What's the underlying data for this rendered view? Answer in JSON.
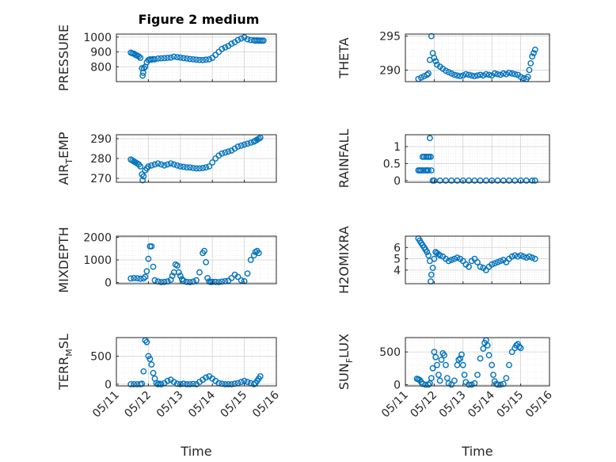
{
  "figure_title": "Figure 2 medium",
  "x_axis_label": "Time",
  "x_ticks": [
    "05/11",
    "05/12",
    "05/13",
    "05/14",
    "05/15",
    "05/16"
  ],
  "marker_color": "#0072BD",
  "chart_data": [
    {
      "type": "scatter",
      "title": "Figure 2 medium",
      "ylabel": "PRESSURE",
      "xlabel": "",
      "xlim": [
        0,
        5
      ],
      "ylim": [
        700,
        1020
      ],
      "yticks": [
        800,
        900,
        1000
      ],
      "grid": true,
      "x": [
        0.45,
        0.5,
        0.55,
        0.6,
        0.65,
        0.7,
        0.75,
        0.8,
        0.82,
        0.84,
        0.86,
        0.9,
        0.95,
        1.0,
        1.05,
        1.1,
        1.15,
        1.2,
        1.3,
        1.4,
        1.5,
        1.6,
        1.7,
        1.8,
        1.9,
        2.0,
        2.1,
        2.2,
        2.3,
        2.4,
        2.5,
        2.6,
        2.7,
        2.8,
        2.9,
        3.0,
        3.1,
        3.2,
        3.3,
        3.4,
        3.5,
        3.6,
        3.7,
        3.8,
        3.9,
        4.0,
        4.1,
        4.2,
        4.3,
        4.35,
        4.4,
        4.45,
        4.5,
        4.55,
        4.6
      ],
      "y": [
        895,
        890,
        888,
        880,
        875,
        870,
        860,
        790,
        740,
        760,
        790,
        800,
        830,
        845,
        850,
        848,
        852,
        850,
        855,
        857,
        858,
        860,
        862,
        868,
        865,
        862,
        858,
        855,
        852,
        850,
        848,
        846,
        845,
        848,
        850,
        860,
        880,
        900,
        920,
        930,
        940,
        955,
        965,
        980,
        990,
        998,
        985,
        980,
        978,
        976,
        978,
        975,
        977,
        975,
        976
      ]
    },
    {
      "type": "scatter",
      "ylabel": "THETA",
      "xlabel": "",
      "xlim": [
        0,
        5
      ],
      "ylim": [
        288.3,
        295.3
      ],
      "yticks": [
        290,
        295
      ],
      "grid": true,
      "x": [
        0.45,
        0.55,
        0.65,
        0.75,
        0.8,
        0.85,
        0.9,
        0.95,
        1.0,
        1.05,
        1.1,
        1.2,
        1.3,
        1.4,
        1.5,
        1.6,
        1.7,
        1.8,
        1.9,
        2.0,
        2.1,
        2.2,
        2.3,
        2.4,
        2.5,
        2.6,
        2.7,
        2.8,
        2.9,
        3.0,
        3.1,
        3.2,
        3.3,
        3.4,
        3.5,
        3.6,
        3.7,
        3.8,
        3.9,
        4.0,
        4.1,
        4.2,
        4.25,
        4.3,
        4.35,
        4.4,
        4.45,
        4.5
      ],
      "y": [
        288.7,
        288.9,
        289.1,
        289.3,
        289.5,
        291.5,
        295.0,
        292.5,
        291.8,
        291.3,
        290.8,
        290.5,
        290.2,
        289.9,
        289.7,
        289.5,
        289.3,
        289.2,
        289.1,
        289.2,
        289.4,
        289.3,
        289.2,
        289.1,
        289.2,
        289.3,
        289.2,
        289.4,
        289.3,
        289.2,
        289.5,
        289.4,
        289.3,
        289.5,
        289.4,
        289.6,
        289.5,
        289.4,
        289.3,
        289.0,
        288.8,
        288.7,
        289.0,
        290.0,
        291.0,
        292.0,
        292.5,
        293.0
      ]
    },
    {
      "type": "scatter",
      "ylabel": "AIR_TEMP",
      "xlabel": "",
      "xlim": [
        0,
        5
      ],
      "ylim": [
        268,
        292
      ],
      "yticks": [
        270,
        280,
        290
      ],
      "grid": true,
      "x": [
        0.45,
        0.5,
        0.55,
        0.6,
        0.65,
        0.7,
        0.75,
        0.8,
        0.82,
        0.85,
        0.9,
        0.95,
        1.0,
        1.1,
        1.2,
        1.3,
        1.4,
        1.5,
        1.6,
        1.7,
        1.8,
        1.9,
        2.0,
        2.1,
        2.2,
        2.3,
        2.4,
        2.5,
        2.6,
        2.7,
        2.8,
        2.9,
        3.0,
        3.1,
        3.2,
        3.3,
        3.4,
        3.5,
        3.6,
        3.7,
        3.8,
        3.9,
        4.0,
        4.1,
        4.2,
        4.3,
        4.35,
        4.4,
        4.45,
        4.5
      ],
      "y": [
        279.5,
        279,
        278.5,
        278,
        277.5,
        277,
        276,
        272,
        269,
        271,
        274,
        275,
        276,
        276.5,
        277,
        277.5,
        277,
        276.5,
        277,
        277.5,
        277,
        276.5,
        276,
        275.8,
        275.5,
        275.5,
        275.2,
        275,
        275,
        275.2,
        275.5,
        276,
        278,
        280,
        281.5,
        282.5,
        283,
        283.5,
        284,
        285,
        286,
        286.5,
        287,
        287.5,
        288,
        288.5,
        289,
        289.5,
        290,
        290.5
      ]
    },
    {
      "type": "scatter",
      "ylabel": "RAINFALL",
      "xlabel": "",
      "xlim": [
        0,
        5
      ],
      "ylim": [
        -0.05,
        1.35
      ],
      "yticks": [
        0,
        0.5,
        1
      ],
      "yticklabels": [
        "0",
        "0.5",
        "1"
      ],
      "grid": true,
      "x": [
        0.45,
        0.5,
        0.55,
        0.6,
        0.62,
        0.65,
        0.7,
        0.72,
        0.75,
        0.78,
        0.8,
        0.82,
        0.85,
        0.88,
        0.9,
        0.95,
        1.0,
        1.2,
        1.4,
        1.6,
        1.8,
        2.0,
        2.2,
        2.4,
        2.6,
        2.8,
        3.0,
        3.2,
        3.4,
        3.6,
        3.8,
        4.0,
        4.2,
        4.4,
        4.5
      ],
      "y": [
        0.3,
        0.3,
        0.3,
        0.7,
        0.3,
        0.7,
        0.3,
        0.7,
        0.3,
        0.7,
        0.3,
        0.7,
        1.25,
        0.7,
        0.3,
        0,
        0,
        0,
        0,
        0,
        0,
        0,
        0,
        0,
        0,
        0,
        0,
        0,
        0,
        0,
        0,
        0,
        0,
        0,
        0
      ]
    },
    {
      "type": "scatter",
      "ylabel": "MIXDEPTH",
      "xlabel": "",
      "xlim": [
        0,
        5
      ],
      "ylim": [
        -50,
        2050
      ],
      "yticks": [
        0,
        1000,
        2000
      ],
      "grid": true,
      "x": [
        0.45,
        0.55,
        0.65,
        0.75,
        0.85,
        0.9,
        0.95,
        1.0,
        1.05,
        1.1,
        1.15,
        1.2,
        1.3,
        1.4,
        1.5,
        1.6,
        1.7,
        1.75,
        1.8,
        1.85,
        1.9,
        1.95,
        2.0,
        2.05,
        2.1,
        2.2,
        2.3,
        2.4,
        2.5,
        2.6,
        2.7,
        2.75,
        2.8,
        2.85,
        2.9,
        2.95,
        3.0,
        3.1,
        3.2,
        3.3,
        3.4,
        3.5,
        3.6,
        3.7,
        3.8,
        3.9,
        4.0,
        4.1,
        4.2,
        4.3,
        4.35,
        4.4,
        4.45
      ],
      "y": [
        180,
        200,
        190,
        170,
        180,
        250,
        500,
        1050,
        1600,
        1600,
        700,
        100,
        50,
        20,
        30,
        50,
        120,
        300,
        450,
        800,
        750,
        450,
        300,
        150,
        80,
        30,
        20,
        40,
        100,
        450,
        1300,
        1400,
        900,
        200,
        50,
        20,
        30,
        30,
        20,
        40,
        60,
        80,
        200,
        350,
        250,
        100,
        60,
        400,
        1000,
        1200,
        1350,
        1400,
        1300
      ]
    },
    {
      "type": "scatter",
      "ylabel": "H2OMIXRA",
      "xlabel": "",
      "xlim": [
        0,
        5
      ],
      "ylim": [
        2.8,
        7.0
      ],
      "yticks": [
        4,
        5,
        6
      ],
      "grid": true,
      "x": [
        0.45,
        0.5,
        0.55,
        0.6,
        0.65,
        0.7,
        0.75,
        0.8,
        0.85,
        0.88,
        0.9,
        0.95,
        1.0,
        1.05,
        1.1,
        1.15,
        1.2,
        1.3,
        1.4,
        1.5,
        1.6,
        1.7,
        1.8,
        1.9,
        2.0,
        2.1,
        2.2,
        2.3,
        2.4,
        2.5,
        2.6,
        2.7,
        2.8,
        2.9,
        3.0,
        3.1,
        3.2,
        3.3,
        3.4,
        3.5,
        3.6,
        3.7,
        3.8,
        3.9,
        4.0,
        4.1,
        4.2,
        4.3,
        4.4,
        4.5
      ],
      "y": [
        6.8,
        6.6,
        6.4,
        6.2,
        6.0,
        5.8,
        5.6,
        5.3,
        4.8,
        3.0,
        3.6,
        4.2,
        5.0,
        5.6,
        5.5,
        5.4,
        5.3,
        5.2,
        5.0,
        4.8,
        4.9,
        5.0,
        5.1,
        5.0,
        4.8,
        4.5,
        4.3,
        4.8,
        5.0,
        4.7,
        4.3,
        4.2,
        4.0,
        4.3,
        4.5,
        4.6,
        4.7,
        4.8,
        4.9,
        4.7,
        5.0,
        5.2,
        5.3,
        5.2,
        5.3,
        5.2,
        5.1,
        5.2,
        5.1,
        5.0
      ]
    },
    {
      "type": "scatter",
      "ylabel": "TERR_MSL",
      "xlabel": "",
      "xlim": [
        0,
        5
      ],
      "ylim": [
        -30,
        830
      ],
      "yticks": [
        0,
        500
      ],
      "grid": true,
      "x": [
        0.45,
        0.55,
        0.65,
        0.75,
        0.8,
        0.85,
        0.9,
        0.95,
        1.0,
        1.05,
        1.1,
        1.15,
        1.2,
        1.25,
        1.3,
        1.35,
        1.4,
        1.5,
        1.6,
        1.7,
        1.8,
        1.9,
        2.0,
        2.1,
        2.2,
        2.3,
        2.4,
        2.5,
        2.6,
        2.7,
        2.8,
        2.9,
        3.0,
        3.1,
        3.2,
        3.3,
        3.4,
        3.5,
        3.6,
        3.7,
        3.8,
        3.9,
        4.0,
        4.1,
        4.2,
        4.3,
        4.35,
        4.4,
        4.45,
        4.5
      ],
      "y": [
        0,
        0,
        0,
        0,
        10,
        230,
        780,
        750,
        500,
        450,
        350,
        200,
        100,
        20,
        0,
        10,
        0,
        20,
        60,
        80,
        40,
        10,
        0,
        10,
        0,
        0,
        5,
        0,
        40,
        80,
        120,
        140,
        100,
        60,
        20,
        10,
        0,
        0,
        0,
        10,
        20,
        40,
        60,
        40,
        20,
        0,
        20,
        60,
        100,
        140
      ]
    },
    {
      "type": "scatter",
      "ylabel": "SUN_FLUX",
      "xlabel": "",
      "xlim": [
        0,
        5
      ],
      "ylim": [
        -20,
        720
      ],
      "yticks": [
        0,
        500
      ],
      "grid": true,
      "x": [
        0.4,
        0.45,
        0.5,
        0.55,
        0.6,
        0.7,
        0.8,
        0.85,
        0.9,
        0.95,
        1.0,
        1.05,
        1.1,
        1.15,
        1.2,
        1.25,
        1.3,
        1.35,
        1.4,
        1.45,
        1.5,
        1.6,
        1.7,
        1.8,
        1.85,
        1.9,
        1.95,
        2.0,
        2.05,
        2.1,
        2.2,
        2.3,
        2.4,
        2.5,
        2.6,
        2.7,
        2.75,
        2.8,
        2.85,
        2.9,
        3.0,
        3.05,
        3.1,
        3.15,
        3.2,
        3.3,
        3.4,
        3.5,
        3.6,
        3.7,
        3.8,
        3.85,
        3.9,
        3.95,
        4.0
      ],
      "y": [
        90,
        80,
        70,
        40,
        10,
        0,
        0,
        20,
        100,
        250,
        500,
        420,
        300,
        150,
        60,
        380,
        480,
        450,
        300,
        100,
        20,
        0,
        60,
        300,
        380,
        400,
        460,
        300,
        150,
        40,
        0,
        0,
        20,
        150,
        400,
        550,
        640,
        680,
        600,
        450,
        300,
        150,
        50,
        10,
        0,
        0,
        10,
        100,
        300,
        500,
        560,
        600,
        620,
        580,
        560
      ]
    }
  ]
}
